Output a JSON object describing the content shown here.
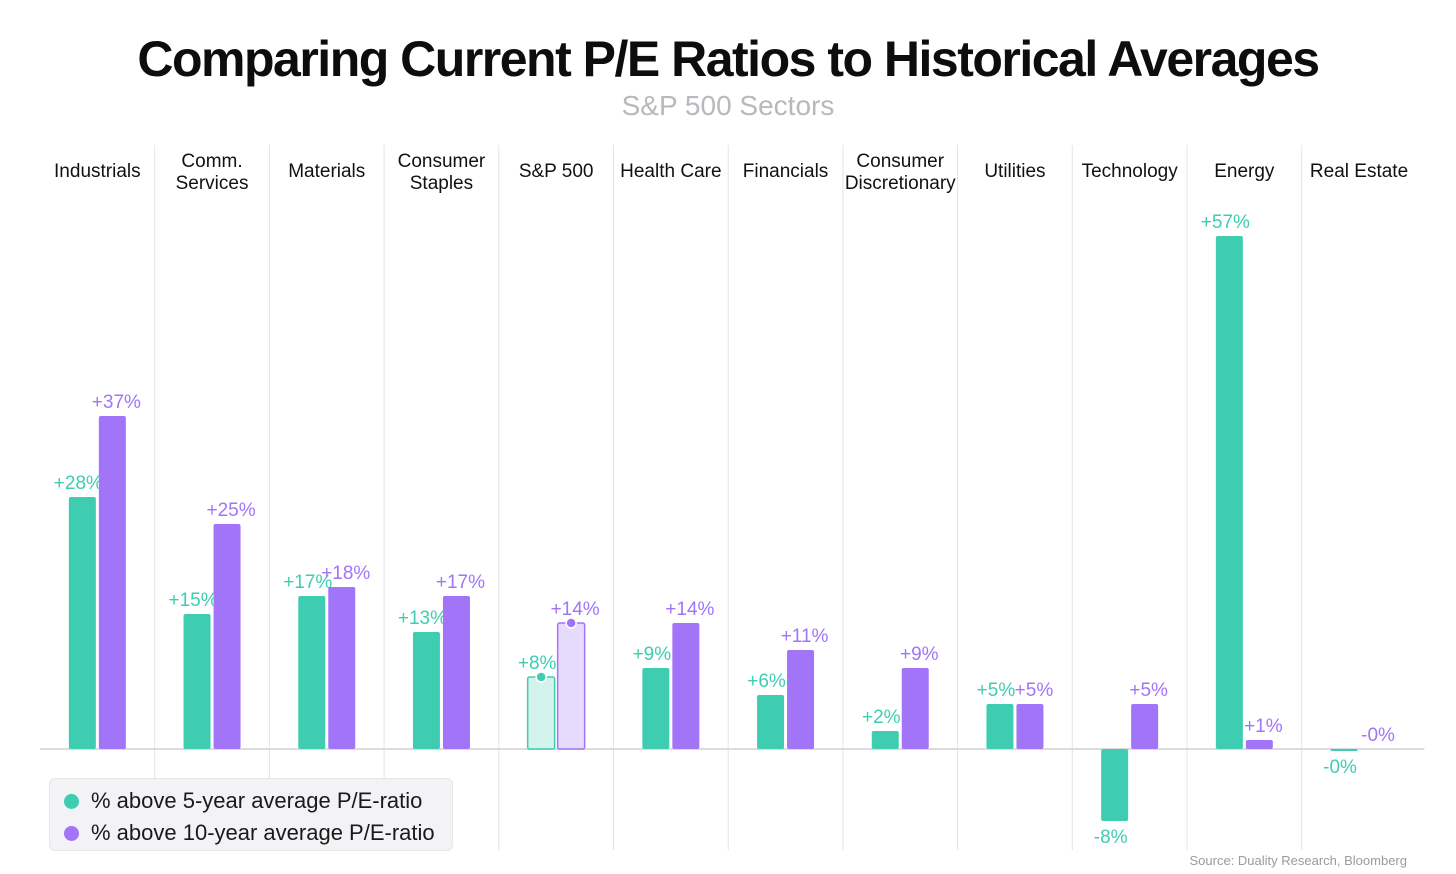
{
  "chart_data": {
    "type": "bar",
    "title": "Comparing Current P/E Ratios to Historical Averages",
    "subtitle": "S&P 500 Sectors",
    "xlabel": "",
    "ylabel": "",
    "ylim": [
      -10,
      60
    ],
    "categories": [
      [
        "Industrials"
      ],
      [
        "Comm.",
        "Services"
      ],
      [
        "Materials"
      ],
      [
        "Consumer",
        "Staples"
      ],
      [
        "S&P 500"
      ],
      [
        "Health Care"
      ],
      [
        "Financials"
      ],
      [
        "Consumer",
        "Discretionary"
      ],
      [
        "Utilities"
      ],
      [
        "Technology"
      ],
      [
        "Energy"
      ],
      [
        "Real Estate"
      ]
    ],
    "highlight_category": 4,
    "series": [
      {
        "name": "% above 5-year average P/E-ratio",
        "color": "#3ecdb1",
        "light_color": "#d3f3ec",
        "values": [
          28,
          15,
          17,
          13,
          8,
          9,
          6,
          2,
          5,
          -8,
          57,
          -0.2
        ],
        "labels": [
          "+28%",
          "+15%",
          "+17%",
          "+13%",
          "+8%",
          "+9%",
          "+6%",
          "+2%",
          "+5%",
          "-8%",
          "+57%",
          "-0%"
        ]
      },
      {
        "name": "% above 10-year average P/E-ratio",
        "color": "#a274f7",
        "light_color": "#e7dbfd",
        "values": [
          37,
          25,
          18,
          17,
          14,
          14,
          11,
          9,
          5,
          5,
          1,
          0
        ],
        "labels": [
          "+37%",
          "+25%",
          "+18%",
          "+17%",
          "+14%",
          "+14%",
          "+11%",
          "+9%",
          "+5%",
          "+5%",
          "+1%",
          "-0%"
        ]
      }
    ],
    "legend_position": "bottom-left",
    "source": "Source: Duality Research, Bloomberg"
  }
}
